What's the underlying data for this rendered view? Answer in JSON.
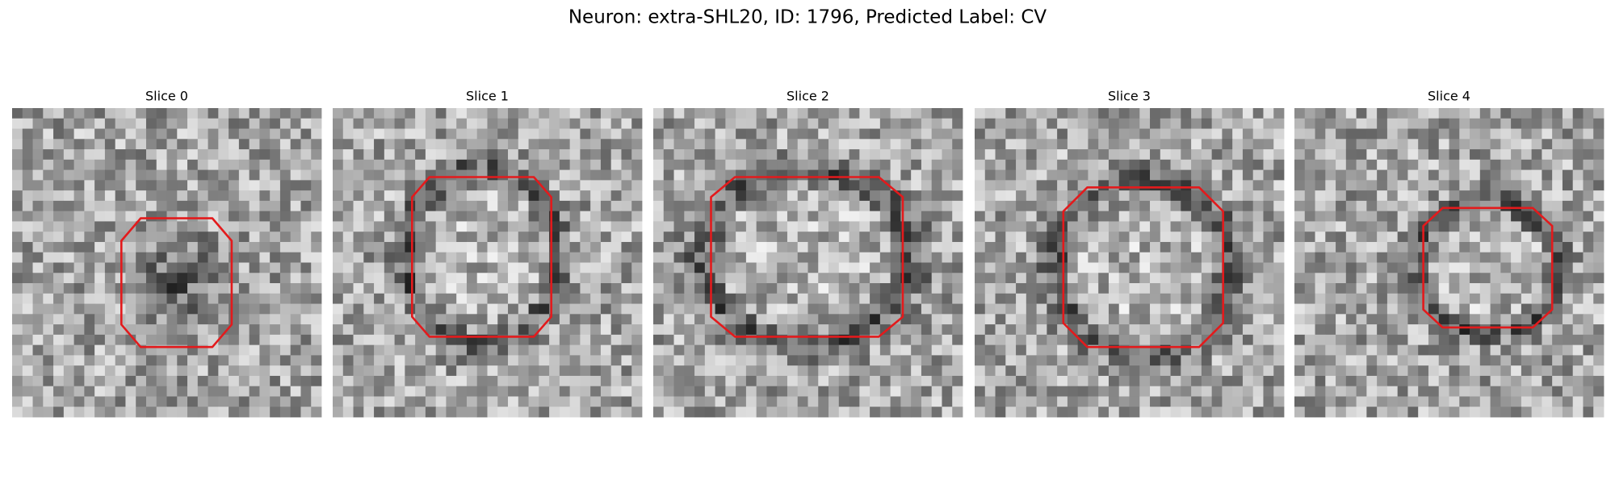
{
  "figure": {
    "title": "Neuron: extra-SHL20, ID: 1796, Predicted Label: CV",
    "panels": [
      {
        "title": "Slice 0"
      },
      {
        "title": "Slice 1"
      },
      {
        "title": "Slice 2"
      },
      {
        "title": "Slice 3"
      },
      {
        "title": "Slice 4"
      }
    ]
  }
}
